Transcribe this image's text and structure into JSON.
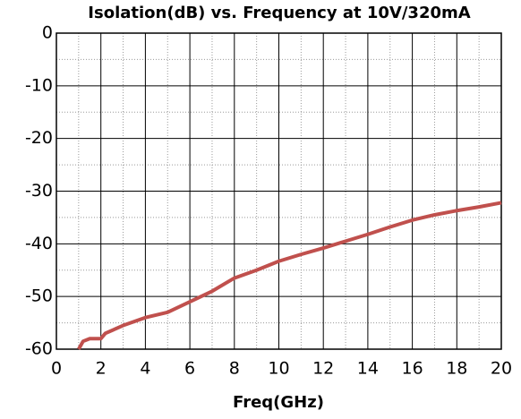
{
  "chart_data": {
    "type": "line",
    "title": "Isolation(dB) vs. Frequency  at 10V/320mA",
    "x_label": "Freq(GHz)",
    "series": [
      {
        "name": "Isolation",
        "color": "#c0504d",
        "x": [
          1,
          1.2,
          1.5,
          2,
          2.2,
          3,
          4,
          5,
          6,
          7,
          8,
          9,
          10,
          11,
          12,
          13,
          14,
          15,
          16,
          17,
          18,
          19,
          20
        ],
        "values": [
          -60,
          -58.5,
          -58,
          -58,
          -57,
          -55.5,
          -54,
          -53,
          -51,
          -49,
          -46.5,
          -45,
          -43.3,
          -42,
          -40.8,
          -39.5,
          -38.2,
          -36.8,
          -35.5,
          -34.5,
          -33.7,
          -33,
          -32.2
        ]
      }
    ],
    "xlim": [
      0,
      20
    ],
    "xticks": [
      0,
      2,
      4,
      6,
      8,
      10,
      12,
      14,
      16,
      18,
      20
    ],
    "ylim": [
      -60,
      0
    ],
    "yticks": [
      0,
      -10,
      -20,
      -30,
      -40,
      -50,
      -60
    ],
    "grid": true
  }
}
